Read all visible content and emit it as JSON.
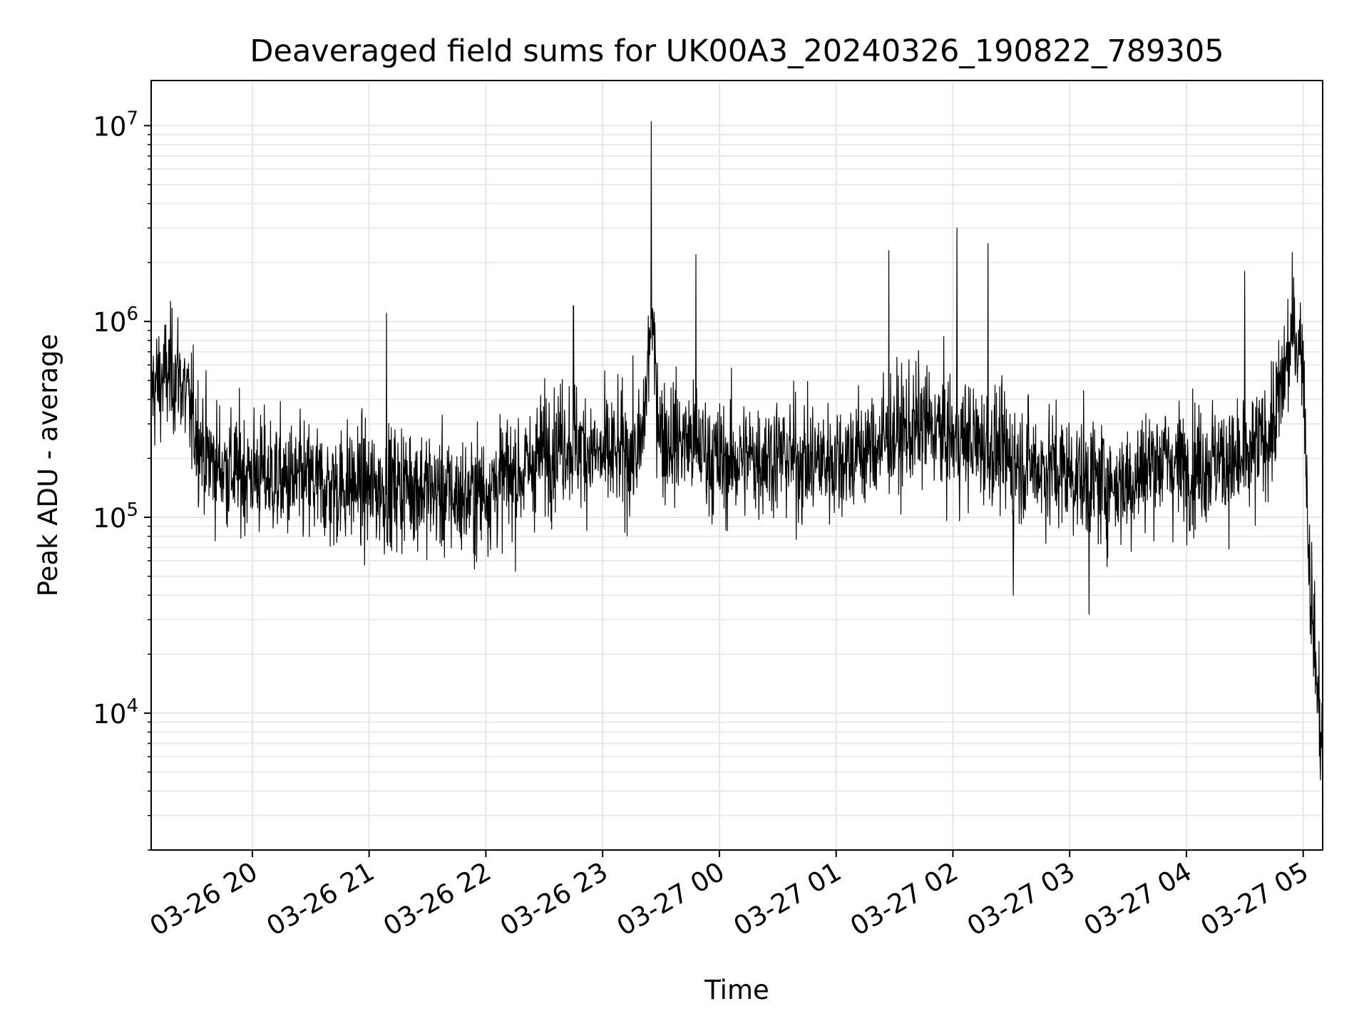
{
  "chart_data": {
    "type": "line",
    "title": "Deaveraged field sums for UK00A3_20240326_190822_789305",
    "xlabel": "Time",
    "ylabel": "Peak ADU - average",
    "y_scale": "log",
    "ylim": [
      2000,
      17000000
    ],
    "xlim": [
      "03-26 19:08",
      "03-27 05:10"
    ],
    "grid": true,
    "line_color": "#000000",
    "grid_color": "#e6e6e6",
    "x_ticks": [
      {
        "t": "03-26 20:00",
        "label": "03-26 20"
      },
      {
        "t": "03-26 21:00",
        "label": "03-26 21"
      },
      {
        "t": "03-26 22:00",
        "label": "03-26 22"
      },
      {
        "t": "03-26 23:00",
        "label": "03-26 23"
      },
      {
        "t": "03-27 00:00",
        "label": "03-27 00"
      },
      {
        "t": "03-27 01:00",
        "label": "03-27 01"
      },
      {
        "t": "03-27 02:00",
        "label": "03-27 02"
      },
      {
        "t": "03-27 03:00",
        "label": "03-27 03"
      },
      {
        "t": "03-27 04:00",
        "label": "03-27 04"
      },
      {
        "t": "03-27 05:00",
        "label": "03-27 05"
      }
    ],
    "y_ticks": [
      {
        "value": 10000,
        "base": "10",
        "exp": "4"
      },
      {
        "value": 100000,
        "base": "10",
        "exp": "5"
      },
      {
        "value": 1000000,
        "base": "10",
        "exp": "6"
      },
      {
        "value": 10000000,
        "base": "10",
        "exp": "7"
      }
    ],
    "series": [
      {
        "x": [
          "03-26 19:08",
          "03-26 19:15",
          "03-26 19:22",
          "03-26 19:30",
          "03-26 19:37",
          "03-26 19:45",
          "03-26 19:52",
          "03-26 20:00",
          "03-26 20:10",
          "03-26 20:20",
          "03-26 20:30",
          "03-26 20:40",
          "03-26 20:50",
          "03-26 21:00",
          "03-26 21:10",
          "03-26 21:20",
          "03-26 21:30",
          "03-26 21:40",
          "03-26 21:50",
          "03-26 22:00",
          "03-26 22:10",
          "03-26 22:20",
          "03-26 22:30",
          "03-26 22:40",
          "03-26 22:50",
          "03-26 23:00",
          "03-26 23:10",
          "03-26 23:20",
          "03-26 23:25",
          "03-26 23:30",
          "03-26 23:40",
          "03-26 23:50",
          "03-27 00:00",
          "03-27 00:15",
          "03-27 00:30",
          "03-27 00:45",
          "03-27 01:00",
          "03-27 01:15",
          "03-27 01:30",
          "03-27 01:45",
          "03-27 02:00",
          "03-27 02:15",
          "03-27 02:30",
          "03-27 02:45",
          "03-27 03:00",
          "03-27 03:15",
          "03-27 03:30",
          "03-27 03:45",
          "03-27 04:00",
          "03-27 04:15",
          "03-27 04:30",
          "03-27 04:45",
          "03-27 04:55",
          "03-27 05:00",
          "03-27 05:03",
          "03-27 05:06",
          "03-27 05:10"
        ],
        "y": [
          450000,
          520000,
          550000,
          300000,
          200000,
          180000,
          170000,
          170000,
          160000,
          150000,
          150000,
          140000,
          150000,
          140000,
          140000,
          150000,
          140000,
          130000,
          125000,
          140000,
          160000,
          170000,
          220000,
          250000,
          230000,
          200000,
          210000,
          220000,
          1000000,
          260000,
          250000,
          230000,
          190000,
          200000,
          210000,
          190000,
          200000,
          220000,
          260000,
          300000,
          250000,
          240000,
          200000,
          180000,
          170000,
          150000,
          150000,
          200000,
          180000,
          200000,
          180000,
          300000,
          900000,
          700000,
          60000,
          20000,
          6000
        ]
      }
    ],
    "spikes": [
      {
        "x": "03-26 23:25",
        "y": 10500000
      },
      {
        "x": "03-27 02:02",
        "y": 3000000
      },
      {
        "x": "03-27 02:18",
        "y": 2500000
      },
      {
        "x": "03-27 01:27",
        "y": 2300000
      },
      {
        "x": "03-26 23:48",
        "y": 2200000
      },
      {
        "x": "03-26 21:09",
        "y": 1100000
      },
      {
        "x": "03-26 22:45",
        "y": 1200000
      },
      {
        "x": "03-27 04:30",
        "y": 1800000
      },
      {
        "x": "03-27 03:10",
        "y": 32000
      },
      {
        "x": "03-27 02:31",
        "y": 40000
      }
    ]
  }
}
